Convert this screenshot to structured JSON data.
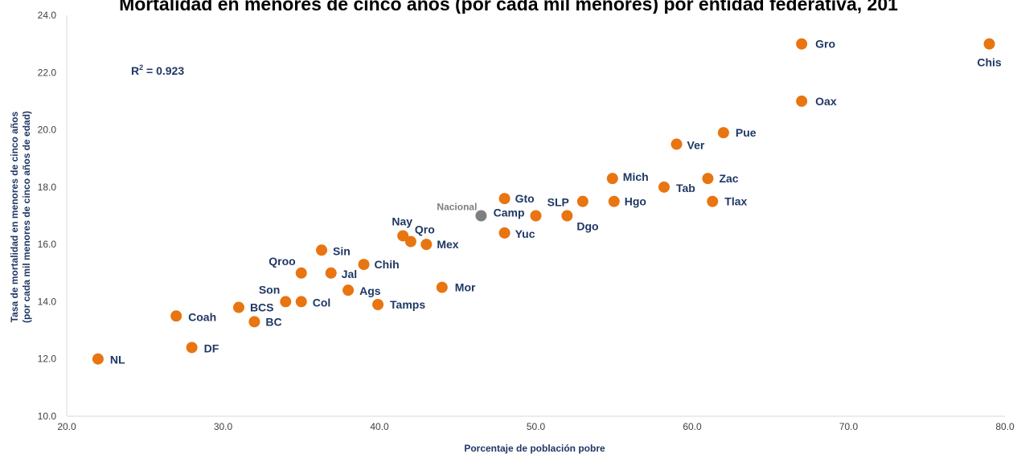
{
  "chart_data": {
    "type": "scatter",
    "title": "Mortalidad en menores de cinco años (por cada mil menores) por entidad federativa, 201",
    "xlabel": "Porcentaje de población pobre",
    "ylabel": [
      "Tasa de mortalidad en menores de cinco años",
      "(por cada mil menores de cinco años de edad)"
    ],
    "xlim": [
      20,
      80
    ],
    "ylim": [
      10,
      24
    ],
    "xticks": [
      "20.0",
      "30.0",
      "40.0",
      "50.0",
      "60.0",
      "70.0",
      "80.0"
    ],
    "yticks": [
      "10.0",
      "12.0",
      "14.0",
      "16.0",
      "18.0",
      "20.0",
      "22.0",
      "24.0"
    ],
    "annotation": {
      "prefix": "R",
      "sup": "2",
      "suffix": " = 0.923"
    },
    "grid": false,
    "colors": {
      "point": "#e87511",
      "national": "#7f7f7f",
      "label": "#1f3864"
    },
    "points": [
      {
        "label": "NL",
        "x": 22.0,
        "y": 12.0
      },
      {
        "label": "Coah",
        "x": 27.0,
        "y": 13.5
      },
      {
        "label": "DF",
        "x": 28.0,
        "y": 12.4
      },
      {
        "label": "BCS",
        "x": 31.0,
        "y": 13.8
      },
      {
        "label": "BC",
        "x": 32.0,
        "y": 13.3
      },
      {
        "label": "Son",
        "x": 34.0,
        "y": 14.0
      },
      {
        "label": "Col",
        "x": 35.0,
        "y": 14.0
      },
      {
        "label": "Qroo",
        "x": 35.0,
        "y": 15.0
      },
      {
        "label": "Sin",
        "x": 36.3,
        "y": 15.8
      },
      {
        "label": "Jal",
        "x": 36.9,
        "y": 15.0
      },
      {
        "label": "Ags",
        "x": 38.0,
        "y": 14.4
      },
      {
        "label": "Chih",
        "x": 39.0,
        "y": 15.3
      },
      {
        "label": "Tamps",
        "x": 39.9,
        "y": 13.9
      },
      {
        "label": "Nay",
        "x": 41.5,
        "y": 16.3
      },
      {
        "label": "Qro",
        "x": 42.0,
        "y": 16.1
      },
      {
        "label": "Mex",
        "x": 43.0,
        "y": 16.0
      },
      {
        "label": "Mor",
        "x": 44.0,
        "y": 14.5
      },
      {
        "label": "Nacional",
        "x": 46.5,
        "y": 17.0,
        "national": true
      },
      {
        "label": "Gto",
        "x": 48.0,
        "y": 17.6
      },
      {
        "label": "Yuc",
        "x": 48.0,
        "y": 16.4
      },
      {
        "label": "Camp",
        "x": 50.0,
        "y": 17.0
      },
      {
        "label": "Dgo",
        "x": 52.0,
        "y": 17.0
      },
      {
        "label": "SLP",
        "x": 53.0,
        "y": 17.5
      },
      {
        "label": "Mich",
        "x": 54.9,
        "y": 18.3
      },
      {
        "label": "Hgo",
        "x": 55.0,
        "y": 17.5
      },
      {
        "label": "Tab",
        "x": 58.2,
        "y": 18.0
      },
      {
        "label": "Ver",
        "x": 59.0,
        "y": 19.5
      },
      {
        "label": "Zac",
        "x": 61.0,
        "y": 18.3
      },
      {
        "label": "Tlax",
        "x": 61.3,
        "y": 17.5
      },
      {
        "label": "Pue",
        "x": 62.0,
        "y": 19.9
      },
      {
        "label": "Oax",
        "x": 67.0,
        "y": 21.0
      },
      {
        "label": "Gro",
        "x": 67.0,
        "y": 23.0
      },
      {
        "label": "Chis",
        "x": 79.0,
        "y": 23.0
      }
    ]
  }
}
